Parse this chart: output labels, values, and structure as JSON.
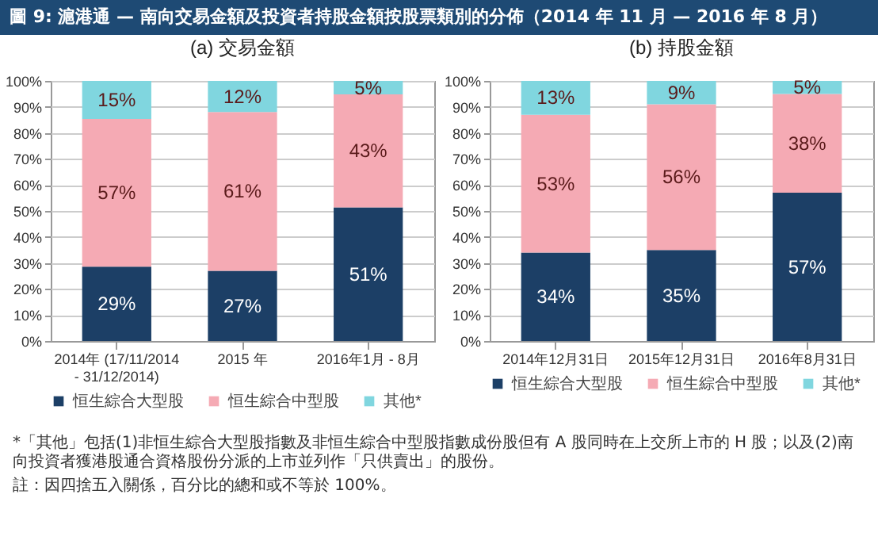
{
  "chart_data": [
    {
      "type": "bar",
      "title": "圖 9: 滬港通 — 南向交易金額及投資者持股金額按股票類別的分佈（2014 年 11 月 — 2016 年 8 月）",
      "subtitle": "(a) 交易金額",
      "stacked": true,
      "categories": [
        "2014年 (17/11/2014 - 31/12/2014)",
        "2015 年",
        "2016年1月 - 8月"
      ],
      "series": [
        {
          "name": "恒生綜合大型股",
          "color": "#1c3f66",
          "values": [
            28.6,
            27,
            51.4
          ]
        },
        {
          "name": "恒生綜合中型股",
          "color": "#f5aab4",
          "values": [
            56.8,
            61,
            43.4
          ]
        },
        {
          "name": "其他*",
          "color": "#80d6df",
          "values": [
            14.6,
            12,
            5.2
          ]
        }
      ],
      "ylim": [
        0,
        100
      ],
      "yticks": [
        {
          "value": 0,
          "label": "0%"
        },
        {
          "value": 10,
          "label": "10%"
        },
        {
          "value": 20,
          "label": "20%"
        },
        {
          "value": 30,
          "label": "30%"
        },
        {
          "value": 40,
          "label": "40%"
        },
        {
          "value": 50,
          "label": "50%"
        },
        {
          "value": 60,
          "label": "60%"
        },
        {
          "value": 70,
          "label": "70%"
        },
        {
          "value": 80,
          "label": "80%"
        },
        {
          "value": 90,
          "label": "90%"
        },
        {
          "value": 100,
          "label": "100%"
        }
      ],
      "grid": "y",
      "legend": "bottom",
      "value_labels": [
        [
          "29%",
          "27%",
          "51%"
        ],
        [
          "57%",
          "61%",
          "43%"
        ],
        [
          "15%",
          "12%",
          "5%"
        ]
      ]
    },
    {
      "type": "bar",
      "title": "(b) 持股金額",
      "stacked": true,
      "categories": [
        "2014年12月31日",
        "2015年12月31日",
        "2016年8月31日"
      ],
      "series": [
        {
          "name": "恒生綜合大型股",
          "color": "#1c3f66",
          "values": [
            34,
            35,
            57
          ]
        },
        {
          "name": "恒生綜合中型股",
          "color": "#f5aab4",
          "values": [
            53,
            56,
            38
          ]
        },
        {
          "name": "其他*",
          "color": "#80d6df",
          "values": [
            13,
            9,
            5
          ]
        }
      ],
      "ylim": [
        0,
        100
      ],
      "yticks": [
        {
          "value": 0,
          "label": "0%"
        },
        {
          "value": 10,
          "label": "10%"
        },
        {
          "value": 20,
          "label": "20%"
        },
        {
          "value": 30,
          "label": "30%"
        },
        {
          "value": 40,
          "label": "40%"
        },
        {
          "value": 50,
          "label": "50%"
        },
        {
          "value": 60,
          "label": "60%"
        },
        {
          "value": 70,
          "label": "70%"
        },
        {
          "value": 80,
          "label": "80%"
        },
        {
          "value": 90,
          "label": "90%"
        },
        {
          "value": 100,
          "label": "100%"
        }
      ],
      "grid": "y",
      "legend": "bottom",
      "value_labels": [
        [
          "34%",
          "35%",
          "57%"
        ],
        [
          "53%",
          "56%",
          "38%"
        ],
        [
          "13%",
          "9%",
          "5%"
        ]
      ],
      "annotations": [
        "*「其他」包括(1)非恒生綜合大型股指數及非恒生綜合中型股指數成份股但有 A 股同時在上交所上市的 H 股；以及(2)南向投資者獲港股通合資格股份分派的上市並列作「只供賣出」的股份。",
        "註：因四捨五入關係，百分比的總和或不等於 100%。"
      ]
    }
  ]
}
